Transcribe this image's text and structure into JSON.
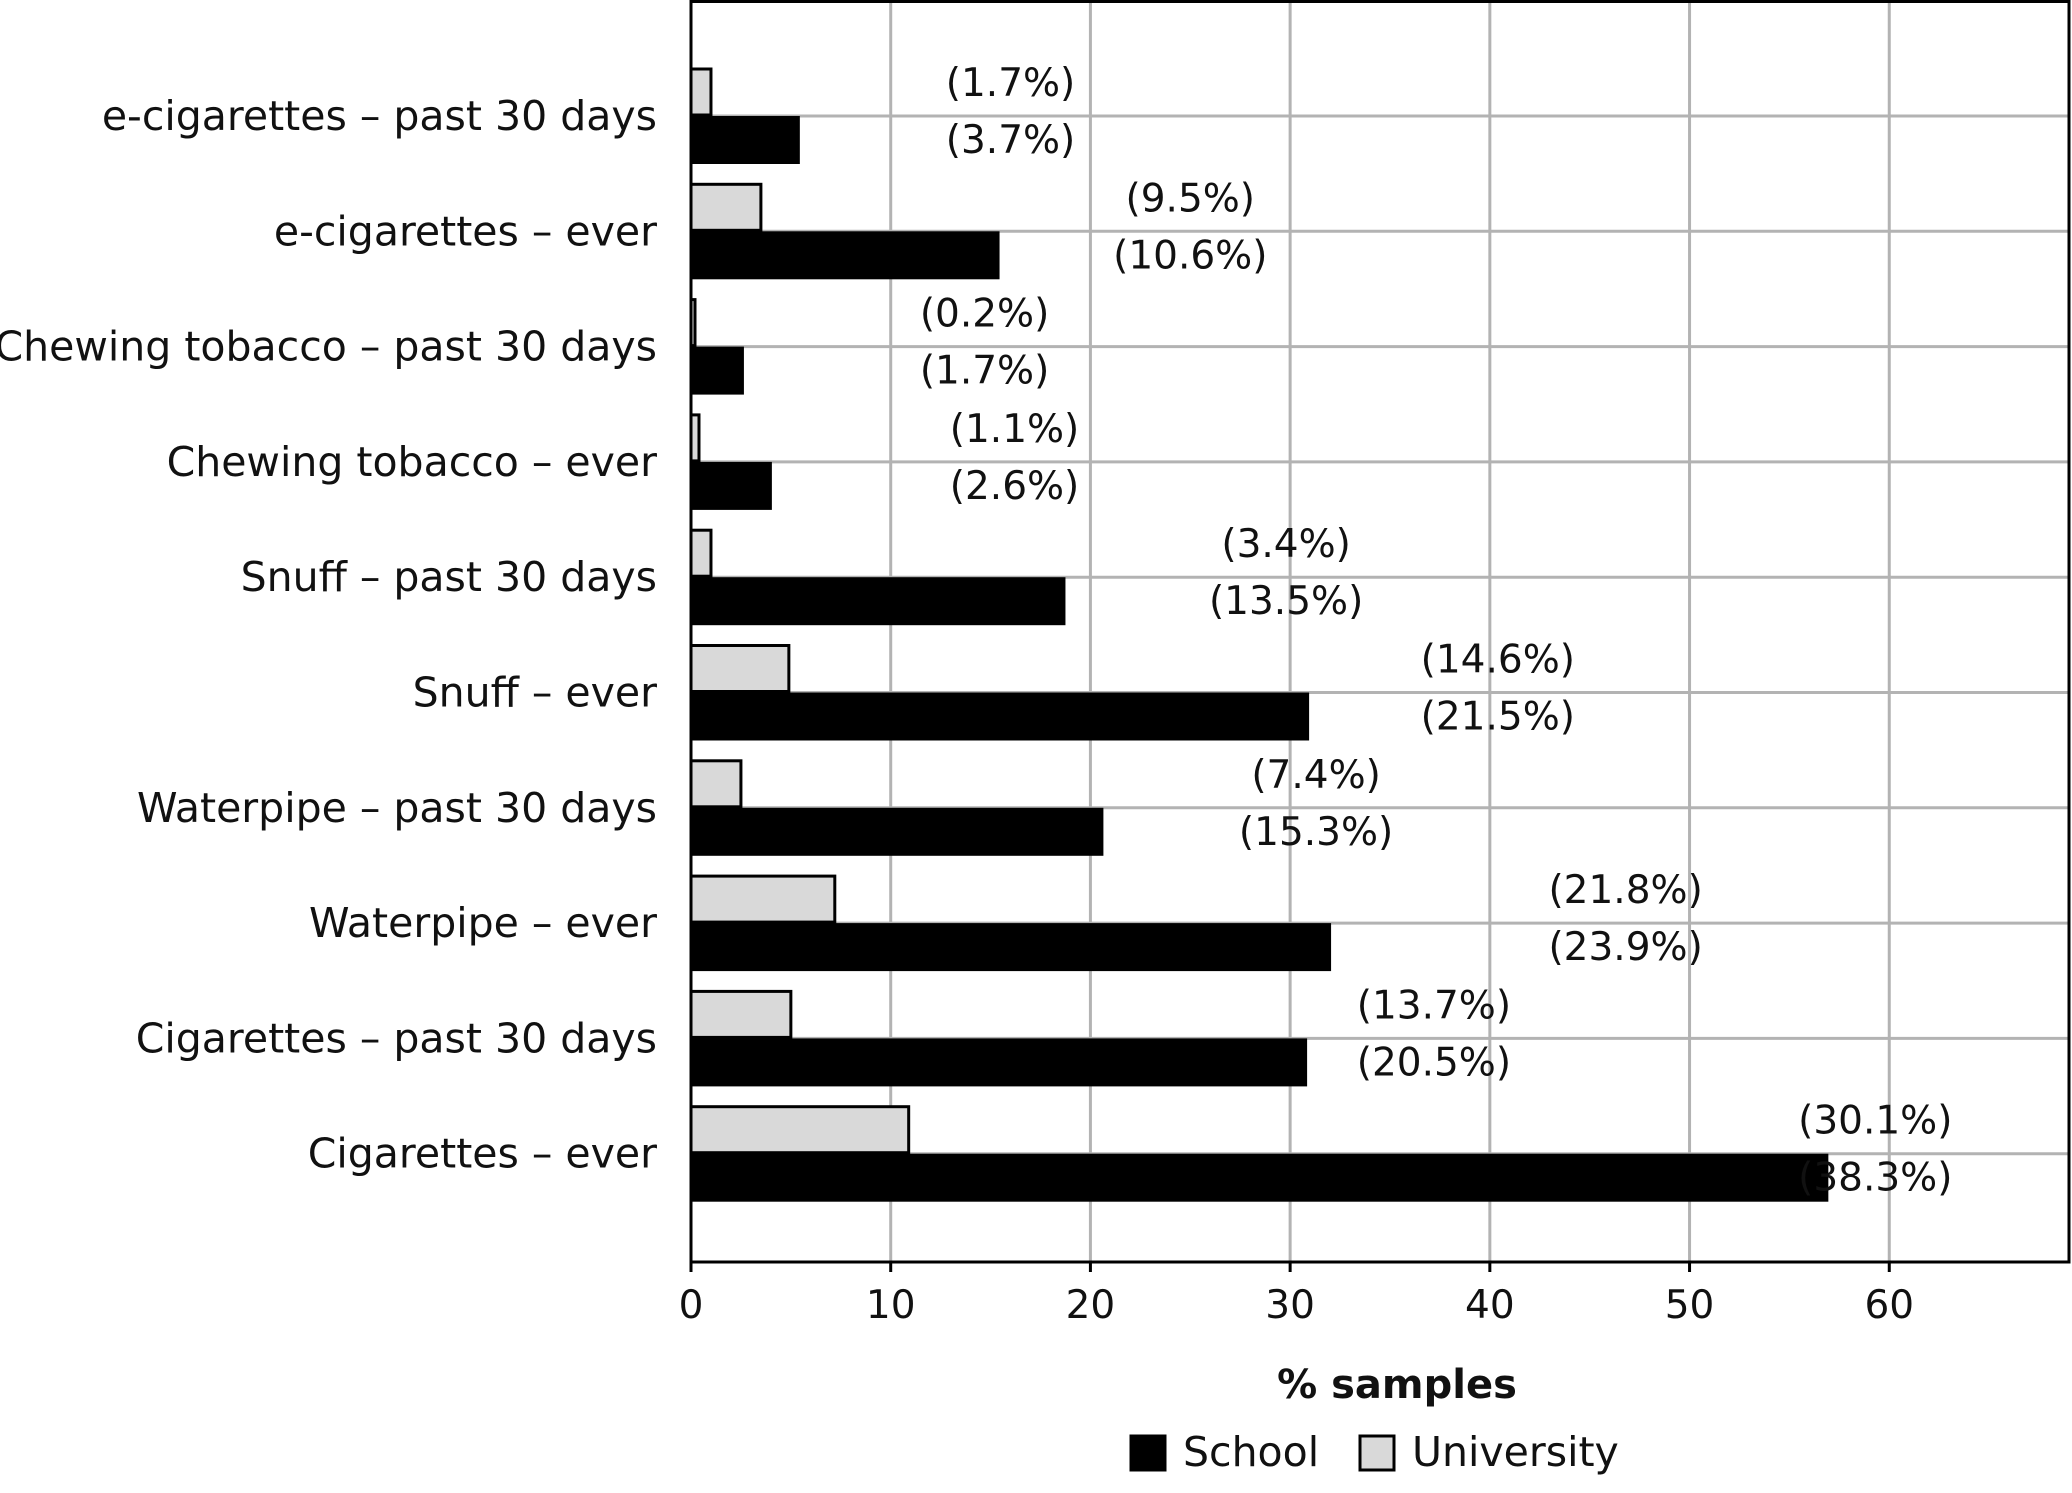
{
  "chart_data": {
    "type": "bar",
    "orientation": "horizontal",
    "categories": [
      "e-cigarettes – past 30 days",
      "e-cigarettes – ever",
      "Chewing tobacco – past 30 days",
      "Chewing tobacco – ever",
      "Snuff – past 30 days",
      "Snuff – ever",
      "Waterpipe – past 30 days",
      "Waterpipe – ever",
      "Cigarettes – past 30 days",
      "Cigarettes – ever"
    ],
    "series": [
      {
        "name": "University",
        "color": "#d9d9d9",
        "values": [
          1.0,
          3.5,
          0.2,
          0.4,
          1.0,
          4.9,
          2.5,
          7.2,
          5.0,
          10.9
        ]
      },
      {
        "name": "School",
        "color": "#000000",
        "values": [
          5.4,
          15.4,
          2.6,
          4.0,
          18.7,
          30.9,
          20.6,
          32.0,
          30.8,
          56.9
        ]
      }
    ],
    "annotations": [
      [
        "(1.7%)",
        "(3.7%)"
      ],
      [
        "(9.5%)",
        "(10.6%)"
      ],
      [
        "(0.2%)",
        "(1.7%)"
      ],
      [
        "(1.1%)",
        "(2.6%)"
      ],
      [
        "(3.4%)",
        "(13.5%)"
      ],
      [
        "(14.6%)",
        "(21.5%)"
      ],
      [
        "(7.4%)",
        "(15.3%)"
      ],
      [
        "(21.8%)",
        "(23.9%)"
      ],
      [
        "(13.7%)",
        "(20.5%)"
      ],
      [
        "(30.1%)",
        "(38.3%)"
      ]
    ],
    "annotation_positions": [
      16,
      25,
      14.7,
      16.2,
      29.8,
      40.4,
      31.3,
      46.8,
      37.2,
      59.3
    ],
    "xticks": [
      0,
      10,
      20,
      30,
      40,
      50,
      60
    ],
    "xlim": [
      0,
      69
    ],
    "xlabel": "% samples",
    "title": "",
    "ylabel": "",
    "grid": true,
    "legend": {
      "placement": "bottom-center",
      "entries": [
        "School",
        "University"
      ]
    }
  }
}
